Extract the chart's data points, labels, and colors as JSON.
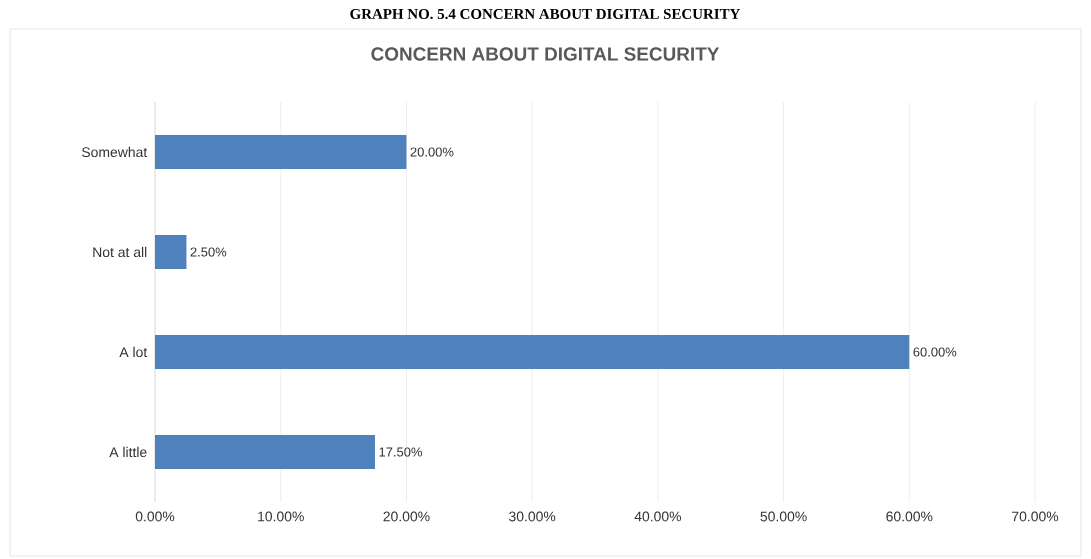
{
  "chart_data": {
    "type": "bar",
    "orientation": "horizontal",
    "title": "CONCERN ABOUT DIGITAL SECURITY",
    "annotations": [
      "GRAPH NO. 5.4 CONCERN ABOUT DIGITAL SECURITY"
    ],
    "categories": [
      "Somewhat",
      "Not at all",
      "A lot",
      "A little"
    ],
    "values": [
      20,
      2.5,
      60,
      17.5
    ],
    "color": "#4f81bd",
    "value_labels": [
      "20.00%",
      "2.50%",
      "60.00%",
      "17.50%"
    ],
    "xlim": [
      0,
      70
    ],
    "xticks": [
      {
        "value": 0,
        "label": "0.00%"
      },
      {
        "value": 10,
        "label": "10.00%"
      },
      {
        "value": 20,
        "label": "20.00%"
      },
      {
        "value": 30,
        "label": "30.00%"
      },
      {
        "value": 40,
        "label": "40.00%"
      },
      {
        "value": 50,
        "label": "50.00%"
      },
      {
        "value": 60,
        "label": "60.00%"
      },
      {
        "value": 70,
        "label": "70.00%"
      }
    ],
    "grid": "x"
  }
}
